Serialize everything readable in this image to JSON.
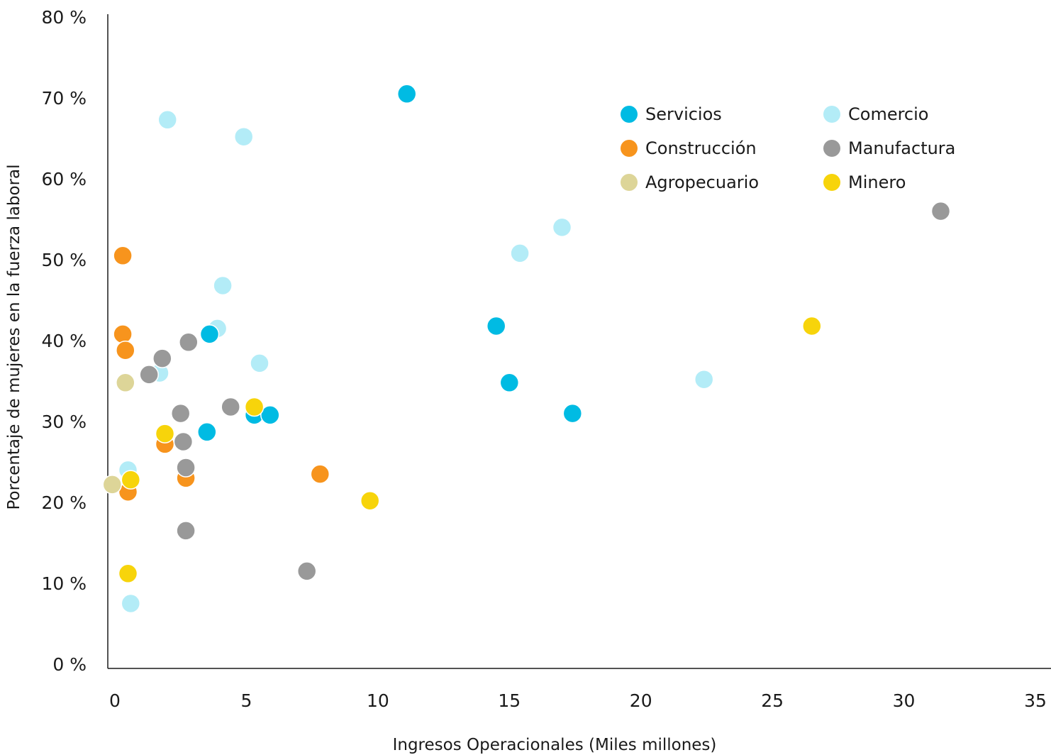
{
  "chart_data": {
    "type": "scatter",
    "title": "",
    "xlabel": "Ingresos Operacionales (Miles millones)",
    "ylabel": "Porcentaje de mujeres en la fuerza laboral",
    "xlim": [
      0,
      35
    ],
    "ylim": [
      0,
      80
    ],
    "x_ticks": [
      "0",
      "5",
      "10",
      "15",
      "20",
      "25",
      "30",
      "35"
    ],
    "y_ticks": [
      "0 %",
      "10 %",
      "20 %",
      "30 %",
      "40 %",
      "50 %",
      "60 %",
      "70 %",
      "80 %"
    ],
    "grid": false,
    "legend_position": "top-right",
    "series": [
      {
        "name": "Comercio",
        "color": "#b3ecf7",
        "points": [
          {
            "x": 2.0,
            "y": 67.3
          },
          {
            "x": 4.9,
            "y": 65.2
          },
          {
            "x": 4.1,
            "y": 46.8
          },
          {
            "x": 3.9,
            "y": 41.5
          },
          {
            "x": 5.5,
            "y": 37.2
          },
          {
            "x": 1.7,
            "y": 36.0
          },
          {
            "x": 0.5,
            "y": 24.0
          },
          {
            "x": 0.6,
            "y": 7.5
          },
          {
            "x": 15.4,
            "y": 50.8
          },
          {
            "x": 17.0,
            "y": 54.0
          },
          {
            "x": 22.4,
            "y": 35.2
          }
        ]
      },
      {
        "name": "Construcción",
        "color": "#f7941d",
        "points": [
          {
            "x": 0.3,
            "y": 50.5
          },
          {
            "x": 0.3,
            "y": 40.8
          },
          {
            "x": 0.4,
            "y": 38.8
          },
          {
            "x": 1.9,
            "y": 27.2
          },
          {
            "x": 2.7,
            "y": 23.0
          },
          {
            "x": 0.5,
            "y": 21.3
          },
          {
            "x": 7.8,
            "y": 23.5
          }
        ]
      },
      {
        "name": "Manufactura",
        "color": "#999999",
        "points": [
          {
            "x": 1.3,
            "y": 35.8
          },
          {
            "x": 1.8,
            "y": 37.8
          },
          {
            "x": 2.8,
            "y": 39.8
          },
          {
            "x": 2.5,
            "y": 31.0
          },
          {
            "x": 2.6,
            "y": 27.5
          },
          {
            "x": 2.7,
            "y": 24.3
          },
          {
            "x": 2.7,
            "y": 16.5
          },
          {
            "x": 4.4,
            "y": 31.8
          },
          {
            "x": 7.3,
            "y": 11.5
          },
          {
            "x": 31.4,
            "y": 56.0
          }
        ]
      },
      {
        "name": "Agropecuario",
        "color": "#ddd598",
        "points": [
          {
            "x": 0.4,
            "y": 34.8
          },
          {
            "x": -0.1,
            "y": 22.2
          }
        ]
      },
      {
        "name": "Servicios",
        "color": "#00bbe3",
        "points": [
          {
            "x": 3.6,
            "y": 40.8
          },
          {
            "x": 3.5,
            "y": 28.7
          },
          {
            "x": 5.3,
            "y": 30.8
          },
          {
            "x": 5.9,
            "y": 30.8
          },
          {
            "x": 11.1,
            "y": 70.5
          },
          {
            "x": 14.5,
            "y": 41.8
          },
          {
            "x": 15.0,
            "y": 34.8
          },
          {
            "x": 17.4,
            "y": 31.0
          }
        ]
      },
      {
        "name": "Minero",
        "color": "#f7d40b",
        "points": [
          {
            "x": 1.9,
            "y": 28.5
          },
          {
            "x": 0.6,
            "y": 22.8
          },
          {
            "x": 0.5,
            "y": 11.2
          },
          {
            "x": 5.3,
            "y": 31.8
          },
          {
            "x": 9.7,
            "y": 20.2
          },
          {
            "x": 26.5,
            "y": 41.8
          }
        ]
      }
    ],
    "legend": [
      {
        "name": "Servicios",
        "color": "#00bbe3"
      },
      {
        "name": "Comercio",
        "color": "#b3ecf7"
      },
      {
        "name": "Construcción",
        "color": "#f7941d"
      },
      {
        "name": "Manufactura",
        "color": "#999999"
      },
      {
        "name": "Agropecuario",
        "color": "#ddd598"
      },
      {
        "name": "Minero",
        "color": "#f7d40b"
      }
    ],
    "axis_color": "#1a1a1a"
  }
}
